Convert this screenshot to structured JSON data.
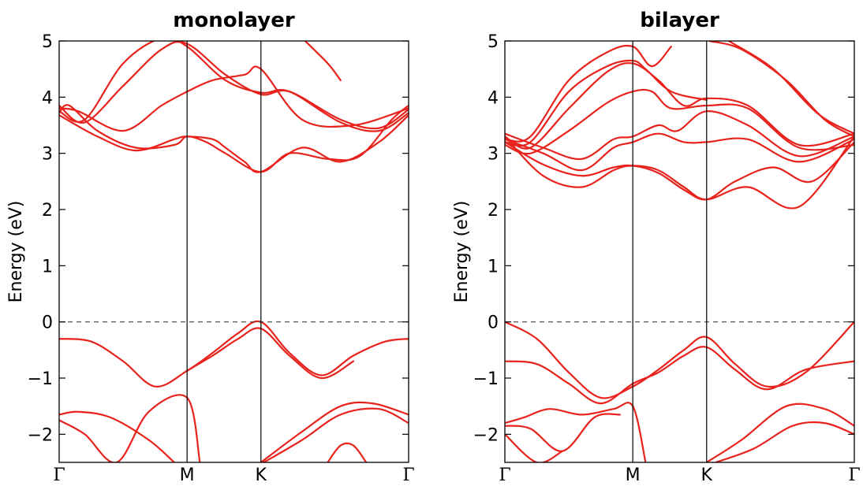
{
  "chart_data": [
    {
      "type": "line",
      "title": "monolayer",
      "ylabel": "Energy (eV)",
      "xlabel": "",
      "ylim": [
        -2.5,
        5
      ],
      "yticks": [
        "5",
        "4",
        "3",
        "2",
        "1",
        "0",
        "−1",
        "−2"
      ],
      "ytick_values": [
        5,
        4,
        3,
        2,
        1,
        0,
        -1,
        -2
      ],
      "kpath": [
        "Γ",
        "M",
        "K",
        "Γ"
      ],
      "kpath_positions": [
        0,
        1,
        1.5774,
        2.732
      ],
      "xlim": [
        0,
        2.732
      ],
      "fermi_level": 0,
      "line_color": "#e8221c",
      "series": [
        {
          "x": [
            0,
            0.15,
            0.5,
            0.8,
            1.0
          ],
          "y": [
            3.8,
            3.75,
            3.4,
            3.85,
            4.1
          ]
        },
        {
          "x": [
            1.0,
            1.2,
            1.45,
            1.5774,
            1.9,
            2.3,
            2.732
          ],
          "y": [
            4.1,
            4.3,
            4.4,
            4.5,
            3.6,
            3.5,
            3.8
          ]
        },
        {
          "x": [
            0,
            0.08,
            0.3,
            0.6,
            0.9,
            1.0,
            1.15,
            1.3,
            1.5774,
            1.8,
            2.1,
            2.35,
            2.6,
            2.732
          ],
          "y": [
            3.72,
            3.85,
            3.4,
            3.1,
            3.15,
            3.3,
            3.2,
            3.0,
            2.67,
            3.0,
            2.9,
            2.95,
            3.6,
            3.85
          ]
        },
        {
          "x": [
            0,
            0.3,
            0.6,
            0.9,
            1.0,
            1.2,
            1.3,
            1.45,
            1.5774,
            1.9,
            2.2,
            2.5,
            2.732
          ],
          "y": [
            3.68,
            3.3,
            3.05,
            3.25,
            3.3,
            3.25,
            3.1,
            2.85,
            2.67,
            3.1,
            2.85,
            3.2,
            3.68
          ]
        },
        {
          "x": [
            0,
            0.2,
            0.5,
            0.8,
            1.0,
            1.3,
            1.5774,
            1.8,
            2.2,
            2.5,
            2.732
          ],
          "y": [
            3.85,
            3.55,
            4.2,
            4.85,
            4.95,
            4.4,
            4.05,
            4.1,
            3.6,
            3.45,
            3.78
          ]
        },
        {
          "x": [
            0,
            0.2,
            0.5,
            0.8,
            1.0,
            1.3,
            1.5774,
            1.8,
            2.2,
            2.5,
            2.732
          ],
          "y": [
            3.75,
            3.6,
            4.6,
            5.05,
            4.9,
            4.3,
            4.08,
            4.1,
            3.55,
            3.4,
            3.72
          ]
        },
        {
          "x": [
            1.9,
            2.1,
            2.2
          ],
          "y": [
            5.05,
            4.6,
            4.3
          ]
        },
        {
          "x": [
            0,
            0.25,
            0.5,
            0.75,
            1.0,
            1.2,
            1.4,
            1.5774,
            1.8,
            2.05,
            2.3,
            2.55,
            2.732
          ],
          "y": [
            -0.3,
            -0.35,
            -0.7,
            -1.15,
            -0.87,
            -0.55,
            -0.2,
            0.0,
            -0.55,
            -0.95,
            -0.6,
            -0.35,
            -0.3
          ]
        },
        {
          "x": [
            1.0,
            1.2,
            1.4,
            1.5774,
            1.8,
            2.05,
            2.3
          ],
          "y": [
            -0.87,
            -0.6,
            -0.3,
            -0.12,
            -0.6,
            -1.0,
            -0.7
          ]
        },
        {
          "x": [
            0,
            0.15,
            0.4,
            0.7,
            0.9
          ],
          "y": [
            -1.65,
            -1.6,
            -1.7,
            -2.1,
            -2.5
          ]
        },
        {
          "x": [
            0,
            0.2,
            0.45,
            0.7,
            1.0,
            1.1
          ],
          "y": [
            -1.75,
            -2.0,
            -2.5,
            -1.6,
            -1.35,
            -2.5
          ]
        },
        {
          "x": [
            1.5774,
            1.9,
            2.2,
            2.45,
            2.732
          ],
          "y": [
            -2.5,
            -1.95,
            -1.5,
            -1.45,
            -1.65
          ]
        },
        {
          "x": [
            1.6,
            1.9,
            2.2,
            2.5,
            2.732
          ],
          "y": [
            -2.5,
            -2.1,
            -1.65,
            -1.55,
            -1.8
          ]
        },
        {
          "x": [
            2.1,
            2.2,
            2.3,
            2.4
          ],
          "y": [
            -2.5,
            -2.2,
            -2.2,
            -2.5
          ]
        }
      ]
    },
    {
      "type": "line",
      "title": "bilayer",
      "ylabel": "Energy (eV)",
      "xlabel": "",
      "ylim": [
        -2.5,
        5
      ],
      "yticks": [
        "5",
        "4",
        "3",
        "2",
        "1",
        "0",
        "−1",
        "−2"
      ],
      "ytick_values": [
        5,
        4,
        3,
        2,
        1,
        0,
        -1,
        -2
      ],
      "kpath": [
        "Γ",
        "M",
        "K",
        "Γ"
      ],
      "kpath_positions": [
        0,
        1,
        1.5774,
        2.732
      ],
      "xlim": [
        0,
        2.732
      ],
      "fermi_level": 0,
      "line_color": "#e8221c",
      "series": [
        {
          "x": [
            0,
            0.3,
            0.6,
            0.85,
            1.0,
            1.2,
            1.4,
            1.5774,
            1.9,
            2.3,
            2.732
          ],
          "y": [
            3.3,
            2.6,
            2.4,
            2.7,
            2.78,
            2.7,
            2.4,
            2.18,
            2.4,
            2.05,
            3.3
          ]
        },
        {
          "x": [
            0,
            0.3,
            0.6,
            0.85,
            1.0,
            1.2,
            1.4,
            1.5774,
            1.8,
            2.1,
            2.4,
            2.732
          ],
          "y": [
            3.2,
            2.8,
            2.6,
            2.75,
            2.78,
            2.65,
            2.35,
            2.18,
            2.5,
            2.75,
            2.5,
            3.2
          ]
        },
        {
          "x": [
            0,
            0.3,
            0.6,
            0.85,
            1.0,
            1.2,
            1.4,
            1.5774,
            1.9,
            2.3,
            2.732
          ],
          "y": [
            3.25,
            3.0,
            2.7,
            3.1,
            3.2,
            3.35,
            3.2,
            3.2,
            3.25,
            2.85,
            3.25
          ]
        },
        {
          "x": [
            0,
            0.3,
            0.6,
            0.85,
            1.0,
            1.2,
            1.35,
            1.5774,
            1.9,
            2.3,
            2.732
          ],
          "y": [
            3.35,
            3.1,
            2.9,
            3.25,
            3.3,
            3.5,
            3.4,
            3.75,
            3.5,
            2.95,
            3.3
          ]
        },
        {
          "x": [
            0,
            0.2,
            0.5,
            0.8,
            1.0,
            1.15,
            1.3,
            1.5774,
            1.9,
            2.3,
            2.732
          ],
          "y": [
            3.15,
            3.0,
            3.4,
            3.9,
            4.1,
            4.1,
            3.8,
            3.85,
            3.8,
            3.1,
            3.15
          ]
        },
        {
          "x": [
            0,
            0.2,
            0.5,
            0.8,
            1.0,
            1.2,
            1.4,
            1.5774,
            1.9,
            2.3,
            2.732
          ],
          "y": [
            3.3,
            3.1,
            3.8,
            4.45,
            4.6,
            4.3,
            3.85,
            3.98,
            3.85,
            3.15,
            3.35
          ]
        },
        {
          "x": [
            0,
            0.2,
            0.5,
            0.8,
            1.0,
            1.1,
            1.3,
            1.5774
          ],
          "y": [
            3.2,
            3.2,
            4.1,
            4.55,
            4.65,
            4.5,
            4.1,
            3.95
          ]
        },
        {
          "x": [
            0,
            0.2,
            0.5,
            0.8,
            1.0,
            1.15,
            1.3
          ],
          "y": [
            3.25,
            3.3,
            4.3,
            4.8,
            4.9,
            4.55,
            4.9
          ]
        },
        {
          "x": [
            1.6,
            1.85,
            2.2,
            2.5,
            2.732
          ],
          "y": [
            5.0,
            4.85,
            4.3,
            3.6,
            3.3
          ]
        },
        {
          "x": [
            1.75,
            2.1,
            2.45,
            2.732
          ],
          "y": [
            5.0,
            4.5,
            3.7,
            3.35
          ]
        },
        {
          "x": [
            0,
            0.25,
            0.5,
            0.75,
            1.0,
            1.2,
            1.4,
            1.5774,
            1.8,
            2.05,
            2.35,
            2.732
          ],
          "y": [
            0.0,
            -0.3,
            -0.9,
            -1.35,
            -1.15,
            -0.85,
            -0.5,
            -0.27,
            -0.75,
            -1.15,
            -0.9,
            0.0
          ]
        },
        {
          "x": [
            0,
            0.25,
            0.5,
            0.75,
            1.0,
            1.2,
            1.4,
            1.5774,
            1.8,
            2.05,
            2.35,
            2.732
          ],
          "y": [
            -0.7,
            -0.75,
            -1.1,
            -1.45,
            -1.1,
            -0.9,
            -0.6,
            -0.45,
            -0.85,
            -1.2,
            -0.85,
            -0.7
          ]
        },
        {
          "x": [
            0,
            0.15,
            0.35,
            0.6,
            0.85,
            1.0,
            1.1
          ],
          "y": [
            -1.8,
            -1.7,
            -1.55,
            -1.65,
            -1.55,
            -1.5,
            -2.5
          ]
        },
        {
          "x": [
            0,
            0.2,
            0.45,
            0.7,
            0.9
          ],
          "y": [
            -1.85,
            -1.9,
            -2.3,
            -1.7,
            -1.65
          ]
        },
        {
          "x": [
            0,
            0.25,
            0.45
          ],
          "y": [
            -2.0,
            -2.5,
            -2.3
          ]
        },
        {
          "x": [
            1.5774,
            1.85,
            2.2,
            2.5,
            2.732
          ],
          "y": [
            -2.5,
            -2.1,
            -1.5,
            -1.55,
            -1.85
          ]
        },
        {
          "x": [
            1.65,
            1.95,
            2.25,
            2.5,
            2.732
          ],
          "y": [
            -2.5,
            -2.25,
            -1.85,
            -1.8,
            -2.0
          ]
        }
      ]
    }
  ]
}
